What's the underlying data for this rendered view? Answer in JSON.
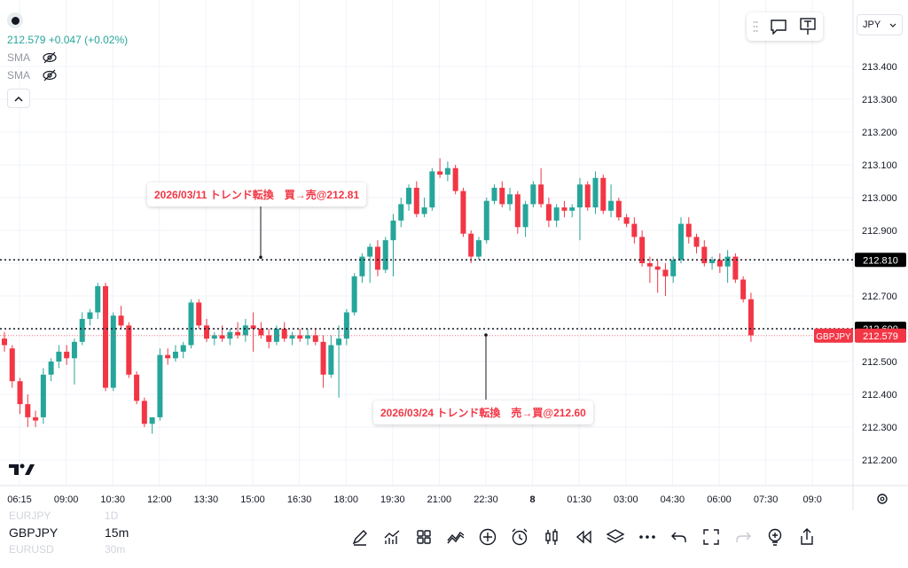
{
  "symbol": "GBPJPY",
  "interval": "15m",
  "legend": {
    "price": "212.579",
    "change": "+0.047 (+0.02%)",
    "sma1": "SMA",
    "sma2": "SMA"
  },
  "currency_label": "JPY",
  "watchlist": {
    "prev_symbol": "EURJPY",
    "prev_interval": "1D",
    "next_symbol": "EURUSD",
    "next_interval": "30m"
  },
  "annotations": [
    {
      "text": "2026/03/11 トレンド転換　買→売@212.81",
      "price": 212.81
    },
    {
      "text": "2026/03/24 トレンド転換　売→買@212.60",
      "price": 212.6
    }
  ],
  "price_lines": [
    {
      "label": "212.810",
      "price": 212.81,
      "color": "#000000"
    },
    {
      "label": "212.600",
      "price": 212.6,
      "color": "#000000"
    }
  ],
  "last_price": {
    "symbol": "GBPJPY",
    "label": "212.579",
    "price": 212.579,
    "color": "#f23645"
  },
  "colors": {
    "up": "#26a69a",
    "down": "#f23645"
  },
  "toolbar_icons": [
    "pen-icon",
    "indicators-icon",
    "templates-icon",
    "strategy-icon",
    "add-icon",
    "alarm-icon",
    "candles-icon",
    "replay-icon",
    "layers-icon",
    "more-icon",
    "undo-icon",
    "fullscreen-icon",
    "redo-icon",
    "bulb-icon",
    "share-icon"
  ],
  "chart_data": {
    "type": "candlestick",
    "y_ticks": [
      "213.400",
      "213.300",
      "213.200",
      "213.100",
      "213.000",
      "212.900",
      "212.800",
      "212.700",
      "212.600",
      "212.500",
      "212.400",
      "212.300",
      "212.200"
    ],
    "ylim": [
      212.16,
      213.48
    ],
    "x_ticks": [
      "06:15",
      "09:00",
      "10:30",
      "12:00",
      "13:30",
      "15:00",
      "16:30",
      "18:00",
      "19:30",
      "21:00",
      "22:30",
      "8",
      "01:30",
      "03:00",
      "04:30",
      "06:00",
      "07:30",
      "09:0"
    ],
    "candles": [
      [
        212.57,
        212.59,
        212.53,
        212.55
      ],
      [
        212.54,
        212.55,
        212.42,
        212.44
      ],
      [
        212.44,
        212.45,
        212.34,
        212.37
      ],
      [
        212.37,
        212.4,
        212.3,
        212.33
      ],
      [
        212.33,
        212.35,
        212.3,
        212.32
      ],
      [
        212.33,
        212.48,
        212.31,
        212.46
      ],
      [
        212.46,
        212.51,
        212.44,
        212.5
      ],
      [
        212.5,
        212.55,
        212.48,
        212.53
      ],
      [
        212.53,
        212.55,
        212.49,
        212.51
      ],
      [
        212.51,
        212.57,
        212.43,
        212.56
      ],
      [
        212.56,
        212.65,
        212.55,
        212.63
      ],
      [
        212.63,
        212.66,
        212.61,
        212.65
      ],
      [
        212.65,
        212.74,
        212.63,
        212.73
      ],
      [
        212.73,
        212.74,
        212.41,
        212.42
      ],
      [
        212.42,
        212.65,
        212.41,
        212.64
      ],
      [
        212.64,
        212.67,
        212.6,
        212.61
      ],
      [
        212.61,
        212.62,
        212.45,
        212.46
      ],
      [
        212.46,
        212.47,
        212.37,
        212.38
      ],
      [
        212.38,
        212.39,
        212.3,
        212.31
      ],
      [
        212.31,
        212.33,
        212.28,
        212.33
      ],
      [
        212.33,
        212.54,
        212.32,
        212.52
      ],
      [
        212.52,
        212.54,
        212.49,
        212.51
      ],
      [
        212.51,
        212.55,
        212.5,
        212.53
      ],
      [
        212.53,
        212.56,
        212.51,
        212.55
      ],
      [
        212.55,
        212.69,
        212.54,
        212.68
      ],
      [
        212.68,
        212.69,
        212.6,
        212.61
      ],
      [
        212.61,
        212.63,
        212.56,
        212.57
      ],
      [
        212.57,
        212.59,
        212.55,
        212.58
      ],
      [
        212.58,
        212.61,
        212.56,
        212.57
      ],
      [
        212.57,
        212.6,
        212.55,
        212.59
      ],
      [
        212.59,
        212.62,
        212.57,
        212.58
      ],
      [
        212.58,
        212.63,
        212.56,
        212.61
      ],
      [
        212.61,
        212.65,
        212.53,
        212.6
      ],
      [
        212.6,
        212.62,
        212.57,
        212.58
      ],
      [
        212.58,
        212.6,
        212.54,
        212.56
      ],
      [
        212.56,
        212.61,
        212.55,
        212.6
      ],
      [
        212.6,
        212.62,
        212.56,
        212.57
      ],
      [
        212.57,
        212.59,
        212.55,
        212.58
      ],
      [
        212.58,
        212.6,
        212.56,
        212.57
      ],
      [
        212.57,
        212.6,
        212.55,
        212.58
      ],
      [
        212.58,
        212.6,
        212.55,
        212.56
      ],
      [
        212.56,
        212.58,
        212.42,
        212.46
      ],
      [
        212.46,
        212.58,
        212.45,
        212.55
      ],
      [
        212.55,
        212.61,
        212.39,
        212.57
      ],
      [
        212.57,
        212.66,
        212.55,
        212.65
      ],
      [
        212.65,
        212.77,
        212.64,
        212.76
      ],
      [
        212.76,
        212.83,
        212.74,
        212.82
      ],
      [
        212.82,
        212.86,
        212.74,
        212.85
      ],
      [
        212.85,
        212.87,
        212.76,
        212.78
      ],
      [
        212.78,
        212.88,
        212.77,
        212.87
      ],
      [
        212.87,
        212.95,
        212.76,
        212.93
      ],
      [
        212.93,
        213.0,
        212.91,
        212.98
      ],
      [
        212.98,
        213.04,
        212.96,
        213.03
      ],
      [
        213.03,
        213.05,
        212.94,
        212.95
      ],
      [
        212.95,
        213.0,
        212.94,
        212.97
      ],
      [
        212.97,
        213.09,
        212.96,
        213.08
      ],
      [
        213.08,
        213.12,
        213.06,
        213.07
      ],
      [
        213.07,
        213.11,
        213.05,
        213.09
      ],
      [
        213.09,
        213.1,
        213.01,
        213.02
      ],
      [
        213.02,
        213.03,
        212.88,
        212.89
      ],
      [
        212.89,
        212.9,
        212.8,
        212.82
      ],
      [
        212.82,
        212.88,
        212.81,
        212.87
      ],
      [
        212.87,
        213.0,
        212.86,
        212.99
      ],
      [
        212.99,
        213.04,
        212.98,
        213.03
      ],
      [
        213.03,
        213.05,
        212.97,
        212.98
      ],
      [
        212.98,
        213.03,
        212.96,
        213.01
      ],
      [
        213.01,
        213.02,
        212.89,
        212.91
      ],
      [
        212.91,
        212.99,
        212.88,
        212.98
      ],
      [
        212.98,
        213.05,
        212.97,
        213.04
      ],
      [
        213.04,
        213.09,
        212.97,
        212.98
      ],
      [
        212.98,
        213.0,
        212.91,
        212.93
      ],
      [
        212.93,
        212.98,
        212.91,
        212.97
      ],
      [
        212.97,
        212.99,
        212.94,
        212.96
      ],
      [
        212.96,
        212.98,
        212.94,
        212.97
      ],
      [
        212.97,
        213.06,
        212.87,
        213.04
      ],
      [
        213.04,
        213.05,
        212.96,
        212.97
      ],
      [
        212.97,
        213.08,
        212.95,
        213.06
      ],
      [
        213.06,
        213.07,
        212.95,
        212.96
      ],
      [
        212.96,
        213.04,
        212.94,
        212.99
      ],
      [
        212.99,
        213.0,
        212.93,
        212.94
      ],
      [
        212.94,
        212.95,
        212.91,
        212.92
      ],
      [
        212.92,
        212.94,
        212.86,
        212.88
      ],
      [
        212.88,
        212.9,
        212.79,
        212.8
      ],
      [
        212.8,
        212.82,
        212.74,
        212.79
      ],
      [
        212.79,
        212.81,
        212.71,
        212.78
      ],
      [
        212.78,
        212.8,
        212.7,
        212.76
      ],
      [
        212.76,
        212.82,
        212.74,
        212.81
      ],
      [
        212.81,
        212.94,
        212.8,
        212.92
      ],
      [
        212.92,
        212.94,
        212.86,
        212.88
      ],
      [
        212.88,
        212.89,
        212.83,
        212.85
      ],
      [
        212.85,
        212.87,
        212.79,
        212.8
      ],
      [
        212.8,
        212.82,
        212.78,
        212.81
      ],
      [
        212.81,
        212.83,
        212.77,
        212.79
      ],
      [
        212.79,
        212.84,
        212.74,
        212.82
      ],
      [
        212.82,
        212.83,
        212.74,
        212.75
      ],
      [
        212.75,
        212.76,
        212.68,
        212.69
      ],
      [
        212.69,
        212.71,
        212.56,
        212.58
      ]
    ]
  }
}
